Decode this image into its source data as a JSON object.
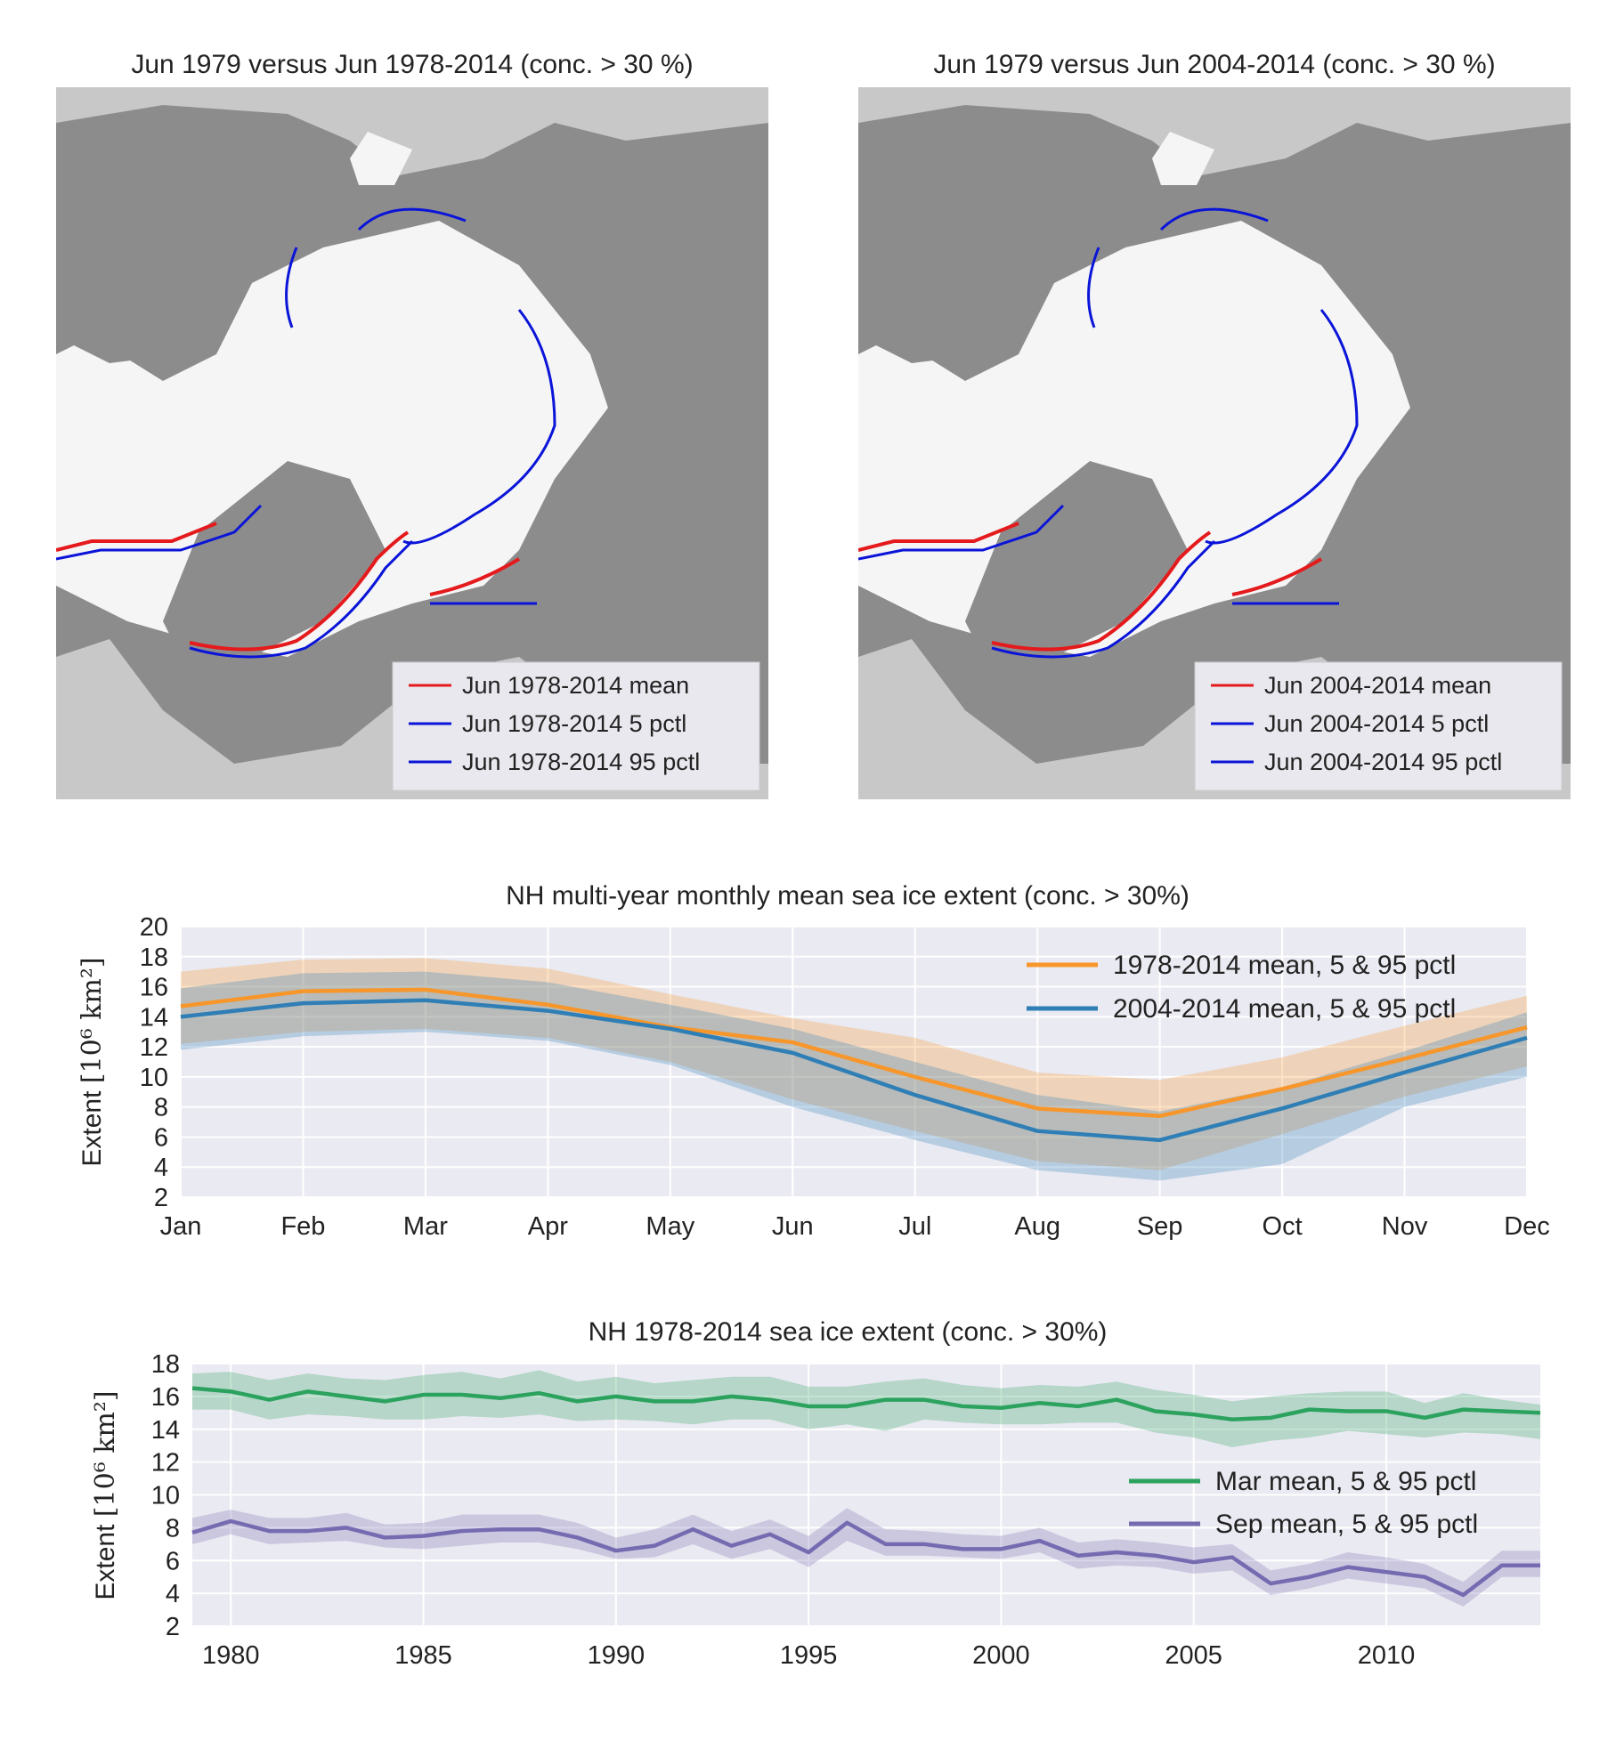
{
  "maps": [
    {
      "title": "Jun 1979 versus Jun 1978-2014 (conc. > 30 %)",
      "legend": [
        "Jun 1978-2014 mean",
        "Jun 1978-2014 5 pctl",
        "Jun 1978-2014 95 pctl"
      ],
      "legend_colors": [
        "#e41a1c",
        "#0a14d8",
        "#0a14d8"
      ]
    },
    {
      "title": "Jun 1979 versus Jun 2004-2014 (conc. > 30 %)",
      "legend": [
        "Jun 2004-2014 mean",
        "Jun 2004-2014 5 pctl",
        "Jun 2004-2014 95 pctl"
      ],
      "legend_colors": [
        "#e41a1c",
        "#0a14d8",
        "#0a14d8"
      ]
    }
  ],
  "chart_data": [
    {
      "type": "line",
      "title": "NH multi-year monthly mean sea ice extent (conc. > 30%)",
      "ylabel": "Extent",
      "ylabel_unit": "[10⁶ km²]",
      "categories": [
        "Jan",
        "Feb",
        "Mar",
        "Apr",
        "May",
        "Jun",
        "Jul",
        "Aug",
        "Sep",
        "Oct",
        "Nov",
        "Dec"
      ],
      "ylim": [
        2,
        20
      ],
      "yticks": [
        2,
        4,
        6,
        8,
        10,
        12,
        14,
        16,
        18,
        20
      ],
      "legend_placement": "top-right",
      "grid": true,
      "series": [
        {
          "name": "1978-2014 mean, 5 & 95 pctl",
          "color": "#f7962b",
          "values": [
            14.7,
            15.7,
            15.8,
            14.8,
            13.3,
            12.3,
            10.0,
            7.9,
            7.4,
            9.2,
            11.2,
            13.3
          ],
          "p5": [
            12.2,
            13.0,
            13.2,
            12.6,
            11.0,
            8.5,
            6.4,
            4.4,
            3.8,
            6.2,
            8.7,
            10.7
          ],
          "p95": [
            17.0,
            17.8,
            17.9,
            17.2,
            15.5,
            13.9,
            12.6,
            10.3,
            9.8,
            11.3,
            13.4,
            15.4
          ]
        },
        {
          "name": "2004-2014 mean, 5 & 95 pctl",
          "color": "#2f7fb6",
          "values": [
            14.0,
            14.9,
            15.1,
            14.4,
            13.2,
            11.6,
            8.8,
            6.4,
            5.8,
            7.9,
            10.3,
            12.6
          ],
          "p5": [
            11.8,
            12.7,
            13.0,
            12.4,
            10.8,
            8.0,
            5.8,
            3.8,
            3.1,
            4.2,
            8.0,
            10.0
          ],
          "p95": [
            15.9,
            16.9,
            17.0,
            16.3,
            14.8,
            13.2,
            11.0,
            8.8,
            7.7,
            9.3,
            11.7,
            14.3
          ]
        }
      ]
    },
    {
      "type": "line",
      "title": "NH 1978-2014 sea ice extent (conc. > 30%)",
      "ylabel": "Extent",
      "ylabel_unit": "[10⁶ km²]",
      "xlim": [
        1979,
        2014
      ],
      "xticks": [
        1980,
        1985,
        1990,
        1995,
        2000,
        2005,
        2010
      ],
      "ylim": [
        2,
        18
      ],
      "yticks": [
        2,
        4,
        6,
        8,
        10,
        12,
        14,
        16,
        18
      ],
      "legend_placement": "center-right",
      "grid": true,
      "x": [
        1979,
        1980,
        1981,
        1982,
        1983,
        1984,
        1985,
        1986,
        1987,
        1988,
        1989,
        1990,
        1991,
        1992,
        1993,
        1994,
        1995,
        1996,
        1997,
        1998,
        1999,
        2000,
        2001,
        2002,
        2003,
        2004,
        2005,
        2006,
        2007,
        2008,
        2009,
        2010,
        2011,
        2012,
        2013,
        2014
      ],
      "series": [
        {
          "name": "Mar mean, 5 & 95 pctl",
          "color": "#2ca25f",
          "values": [
            16.5,
            16.3,
            15.8,
            16.3,
            16.0,
            15.7,
            16.1,
            16.1,
            15.9,
            16.2,
            15.7,
            16.0,
            15.7,
            15.7,
            16.0,
            15.8,
            15.4,
            15.4,
            15.8,
            15.8,
            15.4,
            15.3,
            15.6,
            15.4,
            15.8,
            15.1,
            14.9,
            14.6,
            14.7,
            15.2,
            15.1,
            15.1,
            14.7,
            15.2,
            15.1,
            15.0
          ],
          "p5": [
            15.2,
            15.2,
            14.6,
            14.9,
            14.8,
            14.6,
            14.6,
            14.8,
            14.7,
            14.9,
            14.5,
            14.6,
            14.5,
            14.3,
            14.6,
            14.6,
            14.0,
            14.3,
            13.9,
            14.6,
            14.4,
            14.3,
            14.3,
            14.4,
            14.4,
            13.8,
            13.5,
            12.9,
            13.3,
            13.5,
            13.9,
            13.7,
            13.5,
            13.8,
            13.7,
            13.4
          ],
          "p95": [
            17.4,
            17.5,
            17.0,
            17.4,
            17.1,
            17.0,
            17.3,
            17.5,
            17.1,
            17.6,
            16.9,
            17.2,
            16.8,
            17.0,
            17.2,
            17.2,
            16.6,
            16.6,
            16.9,
            17.1,
            16.7,
            16.5,
            16.7,
            16.6,
            16.9,
            16.4,
            16.1,
            15.7,
            16.0,
            16.2,
            16.3,
            16.3,
            15.6,
            16.2,
            15.8,
            15.5
          ]
        },
        {
          "name": "Sep mean, 5 & 95 pctl",
          "color": "#756bb1",
          "values": [
            7.7,
            8.4,
            7.8,
            7.8,
            8.0,
            7.4,
            7.5,
            7.8,
            7.9,
            7.9,
            7.4,
            6.6,
            6.9,
            7.9,
            6.9,
            7.6,
            6.5,
            8.3,
            7.0,
            7.0,
            6.7,
            6.7,
            7.2,
            6.3,
            6.5,
            6.3,
            5.9,
            6.2,
            4.6,
            5.0,
            5.6,
            5.3,
            5.0,
            3.9,
            5.7,
            5.7
          ],
          "p5": [
            7.0,
            7.6,
            7.0,
            7.1,
            7.2,
            6.8,
            6.7,
            6.9,
            7.1,
            7.1,
            6.7,
            6.1,
            6.2,
            7.0,
            6.1,
            6.7,
            5.6,
            7.2,
            6.3,
            6.3,
            6.2,
            6.1,
            6.5,
            5.5,
            5.7,
            5.6,
            5.2,
            5.4,
            3.9,
            4.3,
            4.9,
            4.6,
            4.3,
            3.2,
            5.0,
            5.0
          ],
          "p95": [
            8.6,
            9.1,
            8.6,
            8.6,
            8.9,
            8.2,
            8.3,
            8.8,
            8.8,
            8.8,
            8.3,
            7.4,
            7.9,
            8.8,
            7.8,
            8.5,
            7.5,
            9.2,
            7.9,
            7.8,
            7.6,
            7.5,
            8.0,
            7.1,
            7.3,
            7.1,
            6.8,
            7.0,
            5.4,
            5.8,
            6.5,
            6.2,
            5.8,
            4.7,
            6.6,
            6.6
          ]
        }
      ]
    }
  ]
}
